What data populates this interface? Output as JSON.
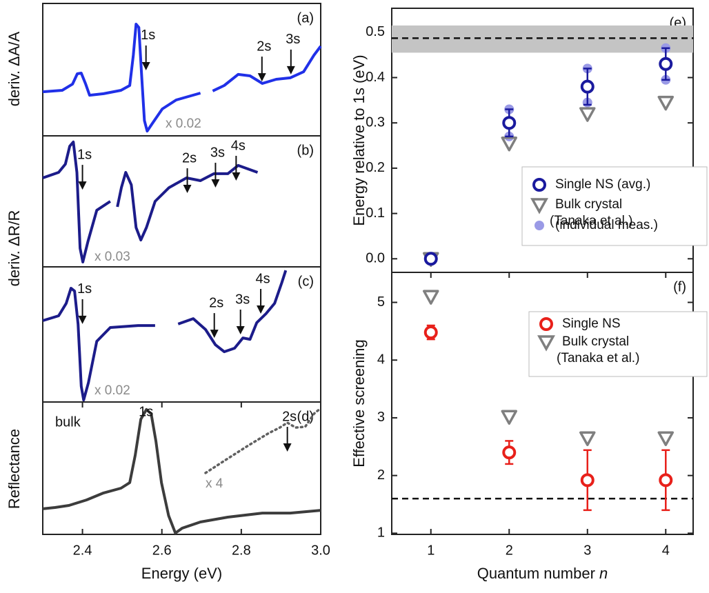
{
  "chart_data": [
    {
      "type": "line",
      "panel_label": "(a)",
      "ylabel": "deriv. ΔA/A",
      "xlim": [
        2.3,
        3.0
      ],
      "ylim": [
        0,
        1
      ],
      "scale_label": "x 0.02",
      "series": [
        {
          "color": "#2030e8",
          "style": "solid",
          "x": [
            2.3,
            2.349,
            2.375,
            2.387,
            2.397,
            2.408,
            2.418,
            2.453,
            2.497,
            2.519,
            2.528,
            2.535,
            2.542,
            2.549,
            2.556,
            2.563,
            2.575,
            2.601,
            2.636,
            2.697,
            null,
            2.728,
            2.757,
            2.792,
            2.822,
            2.853,
            2.888,
            2.923,
            2.957,
            2.983,
            3.0
          ],
          "values": [
            0.333,
            0.344,
            0.391,
            0.469,
            0.474,
            0.391,
            0.307,
            0.318,
            0.344,
            0.38,
            0.609,
            0.844,
            0.818,
            0.453,
            0.115,
            0.036,
            0.089,
            0.203,
            0.271,
            0.323,
            null,
            0.339,
            0.38,
            0.464,
            0.453,
            0.396,
            0.427,
            0.438,
            0.484,
            0.609,
            0.677
          ]
        }
      ],
      "annotations": [
        {
          "text": "1s",
          "x": 2.56,
          "y": 0.495
        },
        {
          "text": "2s",
          "x": 2.852,
          "y": 0.411
        },
        {
          "text": "3s",
          "x": 2.925,
          "y": 0.464
        }
      ]
    },
    {
      "type": "line",
      "panel_label": "(b)",
      "ylabel": "deriv. ΔR/R",
      "xlim": [
        2.3,
        3.0
      ],
      "ylim": [
        0,
        1
      ],
      "scale_label": "x 0.03",
      "series": [
        {
          "color": "#1c1c8a",
          "style": "solid",
          "x": [
            2.3,
            2.34,
            2.357,
            2.368,
            2.377,
            2.386,
            2.394,
            2.401,
            2.414,
            2.436,
            2.47,
            null,
            2.488,
            2.498,
            2.509,
            2.523,
            2.535,
            2.547,
            2.561,
            2.583,
            2.618,
            2.662,
            2.697,
            2.731,
            2.766,
            2.792,
            2.841
          ],
          "values": [
            0.679,
            0.721,
            0.784,
            0.921,
            0.953,
            0.721,
            0.142,
            0.037,
            0.195,
            0.432,
            0.5,
            null,
            0.458,
            0.605,
            0.721,
            0.626,
            0.3,
            0.205,
            0.3,
            0.5,
            0.605,
            0.679,
            0.658,
            0.711,
            0.711,
            0.774,
            0.721
          ]
        }
      ],
      "annotations": [
        {
          "text": "1s",
          "x": 2.4,
          "y": 0.589
        },
        {
          "text": "2s",
          "x": 2.664,
          "y": 0.563
        },
        {
          "text": "3s",
          "x": 2.735,
          "y": 0.605
        },
        {
          "text": "4s",
          "x": 2.787,
          "y": 0.658
        }
      ]
    },
    {
      "type": "line",
      "panel_label": "(c)",
      "xlim": [
        2.3,
        3.0
      ],
      "ylim": [
        0,
        1
      ],
      "scale_label": "x 0.02",
      "series": [
        {
          "color": "#1c1c8a",
          "style": "solid",
          "x": [
            2.3,
            2.34,
            2.359,
            2.371,
            2.38,
            2.389,
            2.397,
            2.403,
            2.415,
            2.436,
            2.47,
            2.54,
            2.583,
            null,
            2.641,
            2.679,
            2.71,
            2.735,
            2.757,
            2.783,
            2.804,
            2.822,
            2.839,
            2.862,
            2.884,
            2.902,
            2.912
          ],
          "values": [
            0.602,
            0.638,
            0.73,
            0.842,
            0.821,
            0.577,
            0.117,
            0.015,
            0.143,
            0.449,
            0.551,
            0.566,
            0.566,
            null,
            0.577,
            0.617,
            0.536,
            0.423,
            0.372,
            0.398,
            0.474,
            0.464,
            0.587,
            0.653,
            0.73,
            0.883,
            0.974
          ]
        }
      ],
      "annotations": [
        {
          "text": "1s",
          "x": 2.4,
          "y": 0.577
        },
        {
          "text": "2s",
          "x": 2.732,
          "y": 0.474
        },
        {
          "text": "3s",
          "x": 2.798,
          "y": 0.5
        },
        {
          "text": "4s",
          "x": 2.849,
          "y": 0.653
        }
      ]
    },
    {
      "type": "line",
      "panel_label": "(d)",
      "ylabel": "Reflectance",
      "xlabel": "Energy (eV)",
      "note": "bulk",
      "xlim": [
        2.3,
        3.0
      ],
      "ylim": [
        0,
        1
      ],
      "scale_label": "x 4",
      "xticks": [
        2.4,
        2.6,
        2.8,
        {
          "value": 3.0,
          "label": "3.0"
        }
      ],
      "series": [
        {
          "color": "#3c3c3c",
          "style": "solid",
          "x": [
            2.3,
            2.331,
            2.366,
            2.41,
            2.453,
            2.497,
            2.519,
            2.533,
            2.547,
            2.561,
            2.573,
            2.585,
            2.599,
            2.617,
            2.634,
            2.651,
            2.697,
            2.766,
            2.853,
            2.923,
            3.0
          ],
          "values": [
            0.193,
            0.203,
            0.219,
            0.26,
            0.313,
            0.349,
            0.391,
            0.599,
            0.87,
            0.943,
            0.911,
            0.703,
            0.391,
            0.141,
            0.01,
            0.047,
            0.094,
            0.13,
            0.161,
            0.161,
            0.182
          ]
        },
        {
          "color": "#606060",
          "style": "dotted",
          "x": [
            2.71,
            2.766,
            2.818,
            2.87,
            2.897,
            2.916,
            2.937,
            2.961,
            2.983,
            3.0
          ],
          "values": [
            0.464,
            0.573,
            0.672,
            0.766,
            0.807,
            0.844,
            0.807,
            0.813,
            0.911,
            0.953
          ]
        }
      ],
      "annotations": [
        {
          "text": "1s",
          "x": 2.56,
          "y": 0.922,
          "arrow": false
        },
        {
          "text": "2s",
          "x": 2.916,
          "y": 0.625
        }
      ]
    },
    {
      "type": "scatter",
      "panel_label": "(e)",
      "ylabel": "Energy relative to 1s (eV)",
      "xlim": [
        0.5,
        4.35
      ],
      "ylim": [
        -0.03,
        0.553
      ],
      "yticks": [
        {
          "value": 0,
          "label": "0.0"
        },
        0.1,
        0.2,
        0.3,
        0.4,
        0.5
      ],
      "hline": {
        "value": 0.487,
        "band": [
          0.455,
          0.515
        ]
      },
      "x": [
        1,
        2,
        3,
        4
      ],
      "series": [
        {
          "name": "(individual meas.)",
          "color": "#9a9ae6",
          "marker": "dot",
          "x": [
            1,
            2,
            2,
            3,
            3,
            4,
            4
          ],
          "values": [
            0,
            0.33,
            0.27,
            0.42,
            0.345,
            0.465,
            0.395
          ]
        },
        {
          "name": "Bulk crystal",
          "name_line2": "(Tanaka et al.)",
          "color": "#7f7f7f",
          "marker": "triangle",
          "values": [
            0,
            0.255,
            0.32,
            0.345
          ]
        },
        {
          "name": "Single NS (avg.)",
          "color": "#1a1a9e",
          "marker": "circle",
          "values": [
            0,
            0.3,
            0.38,
            0.43
          ],
          "errors": [
            0,
            0.03,
            0.04,
            0.035
          ]
        }
      ]
    },
    {
      "type": "scatter",
      "panel_label": "(f)",
      "ylabel": "Effective screening",
      "xlabel": "Quantum number",
      "xlabel_var": "n",
      "xlim": [
        0.5,
        4.35
      ],
      "ylim": [
        0.98,
        5.52
      ],
      "xticks": [
        1,
        2,
        3,
        4
      ],
      "yticks": [
        1,
        2,
        3,
        4,
        5
      ],
      "hline": {
        "value": 1.6
      },
      "x": [
        1,
        2,
        3,
        4
      ],
      "series": [
        {
          "name": "Bulk crystal",
          "name_line2": "(Tanaka et al.)",
          "color": "#7f7f7f",
          "marker": "triangle",
          "values": [
            5.1,
            3.02,
            2.65,
            2.65
          ]
        },
        {
          "name": "Single NS",
          "color": "#e8201a",
          "marker": "circle",
          "values": [
            4.48,
            2.4,
            1.92,
            1.92
          ],
          "errors": [
            0.12,
            0.2,
            0.52,
            0.52
          ]
        }
      ]
    }
  ]
}
